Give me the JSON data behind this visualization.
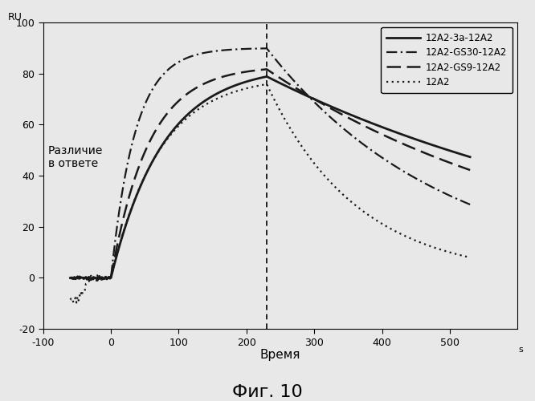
{
  "title": "Фиг. 10",
  "xlabel": "Время",
  "annotation_text": "Различие\nв ответе",
  "xlim": [
    -100,
    600
  ],
  "ylim": [
    -20,
    100
  ],
  "xticks": [
    -100,
    0,
    100,
    200,
    300,
    400,
    500
  ],
  "yticks": [
    -20,
    0,
    20,
    40,
    60,
    80,
    100
  ],
  "vline_x": 230,
  "series": [
    {
      "label": "12A2-3а-12A2",
      "linestyle": "solid",
      "linewidth": 2.0,
      "color": "#1a1a1a"
    },
    {
      "label": "12A2-GS30-12A2",
      "linestyle": "dashdot",
      "linewidth": 1.6,
      "color": "#1a1a1a"
    },
    {
      "label": "12A2-GS9-12A2",
      "linestyle": "dashed",
      "linewidth": 1.8,
      "color": "#1a1a1a"
    },
    {
      "label": "12A2",
      "linestyle": "dotted",
      "linewidth": 1.6,
      "color": "#1a1a1a"
    }
  ],
  "background_color": "#e8e8e8",
  "plot_bg": "#e8e8e8"
}
